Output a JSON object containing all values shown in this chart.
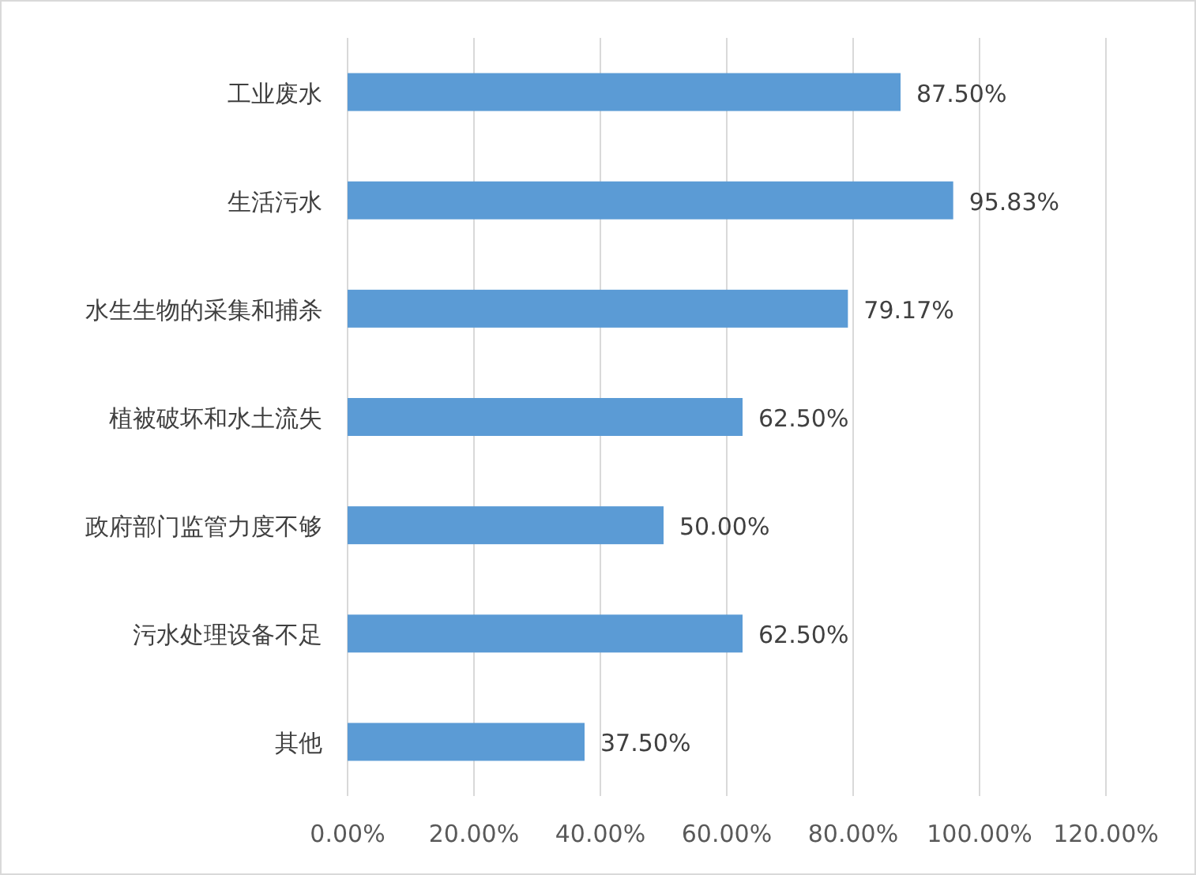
{
  "chart_data": {
    "type": "bar",
    "orientation": "horizontal",
    "categories": [
      "工业废水",
      "生活污水",
      "水生生物的采集和捕杀",
      "植被破坏和水土流失",
      "政府部门监管力度不够",
      "污水处理设备不足",
      "其他"
    ],
    "values": [
      87.5,
      95.83,
      79.17,
      62.5,
      50.0,
      62.5,
      37.5
    ],
    "value_labels": [
      "87.50%",
      "95.83%",
      "79.17%",
      "62.50%",
      "50.00%",
      "62.50%",
      "37.50%"
    ],
    "color": "#5b9bd5",
    "xlim": [
      0,
      120
    ],
    "xticks": [
      {
        "value": 0,
        "label": "0.00%"
      },
      {
        "value": 20,
        "label": "20.00%"
      },
      {
        "value": 40,
        "label": "40.00%"
      },
      {
        "value": 60,
        "label": "60.00%"
      },
      {
        "value": 80,
        "label": "80.00%"
      },
      {
        "value": 100,
        "label": "100.00%"
      },
      {
        "value": 120,
        "label": "120.00%"
      }
    ],
    "grid": "x"
  }
}
